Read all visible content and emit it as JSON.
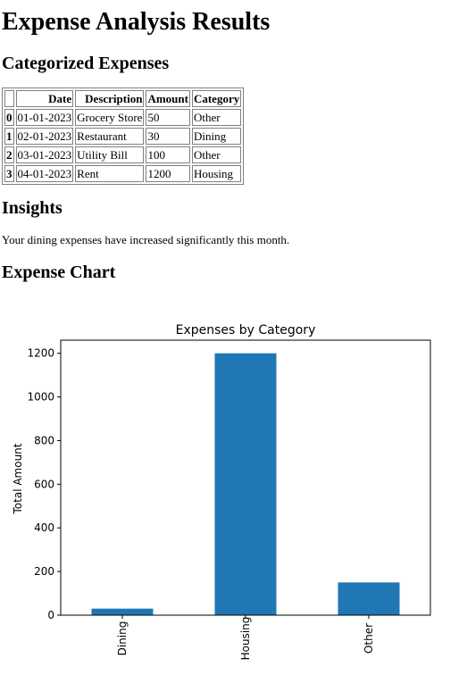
{
  "page": {
    "title": "Expense Analysis Results",
    "sections": {
      "categorized": "Categorized Expenses",
      "insights": "Insights",
      "chart": "Expense Chart"
    }
  },
  "table": {
    "columns": [
      "",
      "Date",
      "Description",
      "Amount",
      "Category"
    ],
    "rows": [
      {
        "index": "0",
        "date": "01-01-2023",
        "description": "Grocery Store",
        "amount": "50",
        "category": "Other"
      },
      {
        "index": "1",
        "date": "02-01-2023",
        "description": "Restaurant",
        "amount": "30",
        "category": "Dining"
      },
      {
        "index": "2",
        "date": "03-01-2023",
        "description": "Utility Bill",
        "amount": "100",
        "category": "Other"
      },
      {
        "index": "3",
        "date": "04-01-2023",
        "description": "Rent",
        "amount": "1200",
        "category": "Housing"
      }
    ]
  },
  "insights": {
    "text": "Your dining expenses have increased significantly this month."
  },
  "chart_data": {
    "type": "bar",
    "title": "Expenses by Category",
    "xlabel": "",
    "ylabel": "Total Amount",
    "categories": [
      "Dining",
      "Housing",
      "Other"
    ],
    "values": [
      30,
      1200,
      150
    ],
    "ylim": [
      0,
      1260
    ],
    "yticks": [
      0,
      200,
      400,
      600,
      800,
      1000,
      1200
    ],
    "grid": false,
    "legend": "none",
    "bar_color": "#1f77b4"
  }
}
